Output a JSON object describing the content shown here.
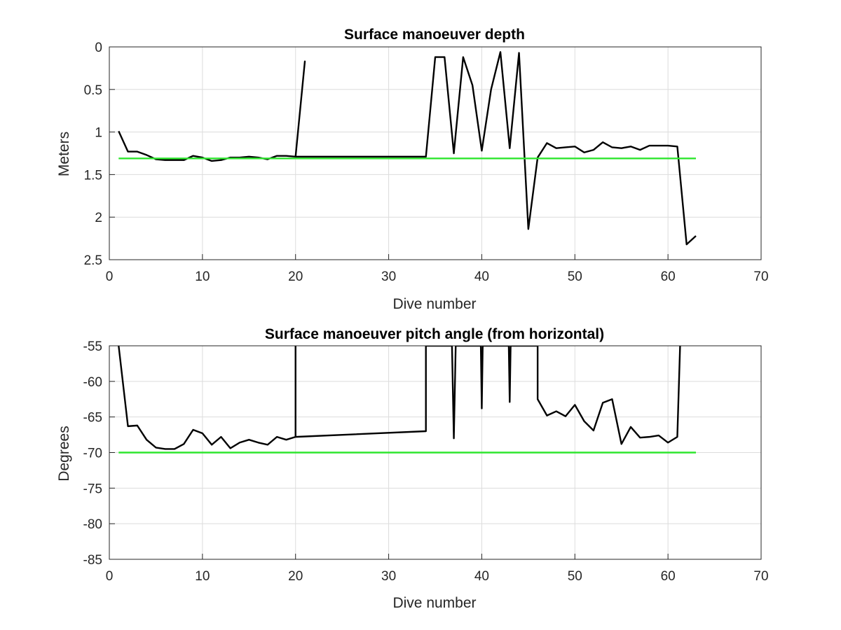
{
  "chart_data": [
    {
      "type": "line",
      "title": "Surface manoeuver depth",
      "xlabel": "Dive number",
      "ylabel": "Meters",
      "xlim": [
        0,
        70
      ],
      "ylim": [
        0,
        2.5
      ],
      "y_reversed": true,
      "grid": true,
      "xticks": [
        "0",
        "10",
        "20",
        "30",
        "40",
        "50",
        "60",
        "70"
      ],
      "yticks": [
        "0",
        "0.5",
        "1",
        "1.5",
        "2",
        "2.5"
      ],
      "series": [
        {
          "color": "#000000",
          "points": [
            [
              1,
              0.99
            ],
            [
              2,
              1.23
            ],
            [
              3,
              1.23
            ],
            [
              4,
              1.27
            ],
            [
              5,
              1.32
            ],
            [
              6,
              1.33
            ],
            [
              7,
              1.33
            ],
            [
              8,
              1.33
            ],
            [
              9,
              1.28
            ],
            [
              10,
              1.3
            ],
            [
              11,
              1.34
            ],
            [
              12,
              1.33
            ],
            [
              13,
              1.3
            ],
            [
              14,
              1.3
            ],
            [
              15,
              1.29
            ],
            [
              16,
              1.3
            ],
            [
              17,
              1.32
            ],
            [
              18,
              1.28
            ],
            [
              19,
              1.28
            ],
            [
              20,
              1.29
            ],
            [
              21,
              0.17
            ],
            [
              20,
              1.29
            ],
            [
              34,
              1.29
            ],
            [
              35,
              0.12
            ],
            [
              36,
              0.12
            ],
            [
              37,
              1.25
            ],
            [
              38,
              0.12
            ],
            [
              39,
              0.45
            ],
            [
              40,
              1.22
            ],
            [
              41,
              0.5
            ],
            [
              42,
              0.06
            ],
            [
              43,
              1.19
            ],
            [
              44,
              0.07
            ],
            [
              45,
              2.14
            ],
            [
              46,
              1.3
            ],
            [
              47,
              1.13
            ],
            [
              48,
              1.19
            ],
            [
              49,
              1.18
            ],
            [
              50,
              1.17
            ],
            [
              51,
              1.24
            ],
            [
              52,
              1.21
            ],
            [
              53,
              1.12
            ],
            [
              54,
              1.18
            ],
            [
              55,
              1.19
            ],
            [
              56,
              1.17
            ],
            [
              57,
              1.21
            ],
            [
              58,
              1.16
            ],
            [
              59,
              1.16
            ],
            [
              60,
              1.16
            ],
            [
              61,
              1.17
            ],
            [
              62,
              2.32
            ],
            [
              63,
              2.22
            ]
          ]
        },
        {
          "color": "#2ee62e",
          "points": [
            [
              1,
              1.31
            ],
            [
              63,
              1.31
            ]
          ]
        }
      ]
    },
    {
      "type": "line",
      "title": "Surface manoeuver pitch angle (from horizontal)",
      "xlabel": "Dive number",
      "ylabel": "Degrees",
      "xlim": [
        0,
        70
      ],
      "ylim": [
        -85,
        -55
      ],
      "grid": true,
      "xticks": [
        "0",
        "10",
        "20",
        "30",
        "40",
        "50",
        "60",
        "70"
      ],
      "yticks": [
        "-55",
        "-60",
        "-65",
        "-70",
        "-75",
        "-80",
        "-85"
      ],
      "series": [
        {
          "color": "#000000",
          "points": [
            [
              1,
              -55
            ],
            [
              2,
              -66.3
            ],
            [
              3,
              -66.2
            ],
            [
              4,
              -68.2
            ],
            [
              5,
              -69.3
            ],
            [
              6,
              -69.5
            ],
            [
              7,
              -69.5
            ],
            [
              8,
              -68.8
            ],
            [
              9,
              -66.8
            ],
            [
              10,
              -67.3
            ],
            [
              11,
              -68.9
            ],
            [
              12,
              -67.8
            ],
            [
              13,
              -69.4
            ],
            [
              14,
              -68.6
            ],
            [
              15,
              -68.2
            ],
            [
              16,
              -68.6
            ],
            [
              17,
              -68.9
            ],
            [
              18,
              -67.8
            ],
            [
              19,
              -68.2
            ],
            [
              20,
              -67.8
            ],
            [
              20,
              -55
            ],
            [
              20,
              -67.8
            ],
            [
              34,
              -67.0
            ],
            [
              34,
              -55
            ],
            [
              36.8,
              -55
            ],
            [
              37,
              -68.0
            ],
            [
              37.2,
              -55
            ],
            [
              39.9,
              -55
            ],
            [
              40,
              -63.8
            ],
            [
              40.1,
              -55
            ],
            [
              42.9,
              -55
            ],
            [
              43,
              -62.9
            ],
            [
              43.1,
              -55
            ],
            [
              46,
              -55
            ],
            [
              46,
              -62.5
            ],
            [
              47,
              -64.8
            ],
            [
              48,
              -64.2
            ],
            [
              49,
              -64.9
            ],
            [
              50,
              -63.3
            ],
            [
              51,
              -65.6
            ],
            [
              52,
              -66.9
            ],
            [
              53,
              -63.0
            ],
            [
              54,
              -62.5
            ],
            [
              55,
              -68.8
            ],
            [
              56,
              -66.4
            ],
            [
              57,
              -67.9
            ],
            [
              58,
              -67.8
            ],
            [
              59,
              -67.6
            ],
            [
              60,
              -68.6
            ],
            [
              61,
              -67.8
            ],
            [
              61.3,
              -55
            ]
          ]
        },
        {
          "color": "#2ee62e",
          "points": [
            [
              1,
              -70.0
            ],
            [
              63,
              -70.0
            ]
          ]
        }
      ]
    }
  ]
}
